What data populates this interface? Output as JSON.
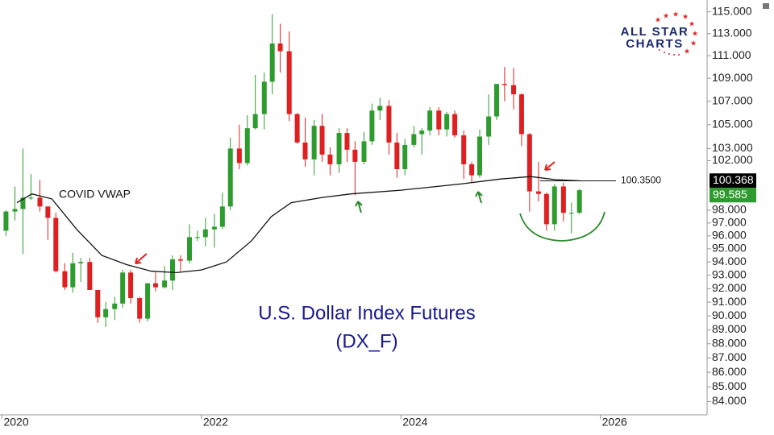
{
  "chart_data": {
    "type": "candlestick",
    "log_scale": true,
    "up_color": "#2e9b2e",
    "down_color": "#e02020",
    "x": [
      2020.04,
      2020.13,
      2020.21,
      2020.29,
      2020.38,
      2020.46,
      2020.54,
      2020.63,
      2020.71,
      2020.79,
      2020.88,
      2020.96,
      2021.04,
      2021.13,
      2021.21,
      2021.29,
      2021.38,
      2021.46,
      2021.54,
      2021.63,
      2021.71,
      2021.79,
      2021.88,
      2021.96,
      2022.04,
      2022.13,
      2022.21,
      2022.29,
      2022.38,
      2022.46,
      2022.54,
      2022.63,
      2022.71,
      2022.79,
      2022.88,
      2022.96,
      2023.04,
      2023.13,
      2023.21,
      2023.29,
      2023.38,
      2023.46,
      2023.54,
      2023.63,
      2023.71,
      2023.79,
      2023.88,
      2023.96,
      2024.04,
      2024.13,
      2024.21,
      2024.29,
      2024.38,
      2024.46,
      2024.54,
      2024.63,
      2024.71,
      2024.79,
      2024.88,
      2024.96,
      2025.04,
      2025.13,
      2025.21,
      2025.29,
      2025.38,
      2025.46,
      2025.54,
      2025.63,
      2025.71,
      2025.79
    ],
    "open": [
      96.4,
      97.9,
      98.1,
      99.0,
      99.0,
      98.3,
      97.4,
      93.3,
      92.1,
      93.9,
      94.0,
      91.9,
      89.9,
      90.5,
      90.9,
      93.2,
      91.3,
      89.8,
      92.4,
      92.1,
      92.6,
      94.2,
      94.1,
      95.9,
      95.9,
      96.5,
      96.7,
      98.3,
      103.0,
      101.8,
      104.7,
      105.9,
      108.7,
      112.1,
      111.4,
      105.9,
      103.5,
      102.1,
      104.9,
      102.5,
      101.7,
      104.3,
      102.9,
      101.9,
      103.6,
      106.2,
      106.6,
      103.5,
      101.3,
      103.3,
      104.2,
      104.5,
      106.2,
      104.6,
      105.9,
      104.1,
      101.7,
      100.8,
      104.0,
      105.7,
      108.5,
      108.4,
      107.6,
      104.2,
      99.5,
      99.3,
      96.9,
      99.9,
      97.8,
      97.8
    ],
    "high": [
      98.0,
      99.9,
      103.0,
      100.9,
      100.4,
      98.3,
      97.8,
      93.9,
      94.7,
      94.3,
      94.3,
      91.9,
      91.0,
      91.4,
      93.4,
      93.4,
      91.4,
      92.4,
      93.2,
      93.7,
      94.5,
      94.5,
      96.9,
      96.4,
      97.4,
      97.7,
      99.4,
      103.9,
      105.0,
      105.8,
      109.3,
      109.5,
      114.8,
      113.9,
      113.2,
      106.0,
      105.6,
      105.4,
      105.9,
      103.1,
      104.7,
      104.7,
      103.6,
      104.4,
      106.8,
      107.3,
      107.1,
      104.3,
      103.8,
      104.9,
      104.7,
      106.5,
      106.5,
      106.1,
      106.2,
      104.5,
      101.9,
      104.6,
      107.6,
      108.5,
      110.0,
      109.9,
      107.7,
      104.3,
      101.9,
      99.4,
      100.1,
      100.2,
      98.6,
      99.7
    ],
    "low": [
      96.0,
      97.2,
      94.6,
      98.8,
      97.9,
      95.7,
      93.2,
      91.9,
      91.7,
      92.5,
      91.9,
      89.5,
      89.2,
      89.7,
      90.6,
      90.9,
      89.5,
      89.6,
      91.8,
      92.0,
      91.9,
      93.3,
      93.9,
      95.6,
      95.2,
      95.1,
      96.5,
      98.0,
      101.3,
      101.6,
      104.6,
      104.6,
      107.6,
      109.5,
      105.3,
      103.4,
      101.5,
      100.8,
      101.9,
      100.8,
      101.0,
      101.9,
      99.2,
      101.7,
      103.3,
      105.4,
      102.5,
      100.6,
      100.8,
      103.1,
      102.5,
      104.1,
      104.1,
      104.0,
      103.9,
      100.5,
      100.2,
      100.6,
      103.3,
      105.4,
      107.0,
      106.3,
      103.2,
      97.9,
      98.7,
      96.4,
      96.4,
      97.1,
      96.2,
      97.7
    ],
    "close": [
      97.9,
      98.1,
      99.0,
      99.0,
      98.3,
      97.4,
      93.3,
      92.1,
      93.9,
      94.0,
      91.9,
      89.9,
      90.5,
      90.9,
      93.2,
      91.3,
      89.8,
      92.4,
      92.1,
      92.6,
      94.2,
      94.1,
      95.9,
      95.9,
      96.5,
      96.7,
      98.3,
      103.0,
      101.8,
      104.7,
      105.9,
      108.7,
      112.1,
      111.4,
      105.9,
      103.5,
      102.1,
      104.9,
      102.5,
      101.7,
      104.3,
      102.9,
      101.9,
      103.6,
      106.2,
      106.6,
      103.5,
      101.3,
      103.3,
      104.2,
      104.5,
      106.2,
      104.6,
      105.9,
      104.1,
      101.7,
      100.8,
      104.0,
      105.7,
      108.5,
      108.4,
      107.6,
      104.2,
      99.5,
      99.3,
      96.9,
      99.9,
      97.8,
      97.8,
      99.6
    ],
    "lines": [
      {
        "name": "COVID VWAP",
        "color": "#111111",
        "x": [
          2020.15,
          2020.3,
          2020.5,
          2020.75,
          2021.0,
          2021.25,
          2021.5,
          2021.75,
          2022.0,
          2022.25,
          2022.5,
          2022.7,
          2022.9,
          2023.2,
          2023.5,
          2024.0,
          2024.6,
          2025.0,
          2025.3,
          2025.55,
          2025.8
        ],
        "values": [
          98.6,
          99.3,
          98.9,
          96.5,
          94.5,
          93.8,
          93.3,
          93.2,
          93.4,
          94.0,
          95.6,
          97.5,
          98.6,
          99.0,
          99.3,
          99.6,
          100.1,
          100.5,
          100.7,
          100.45,
          100.35
        ]
      }
    ],
    "hline": {
      "value": 100.35,
      "label": "100.3500"
    },
    "price_tags": [
      {
        "value": 100.368,
        "color": "#000000"
      },
      {
        "value": 99.585,
        "color": "#2e9b2e"
      }
    ],
    "title": "U.S. Dollar Index Futures",
    "subtitle": "(DX_F)",
    "logo": [
      "ALL STAR",
      "CHARTS"
    ],
    "xlim": [
      2019.98,
      2027.07
    ],
    "xticks": [
      2020,
      2022,
      2024,
      2026
    ],
    "ylim": [
      83.1,
      116.1
    ],
    "yticks": [
      {
        "value": 84,
        "label": "84.000"
      },
      {
        "value": 85,
        "label": "85.000"
      },
      {
        "value": 86,
        "label": "86.000"
      },
      {
        "value": 87,
        "label": "87.000"
      },
      {
        "value": 88,
        "label": "88.000"
      },
      {
        "value": 89,
        "label": "89.000"
      },
      {
        "value": 90,
        "label": "90.000"
      },
      {
        "value": 91,
        "label": "91.000"
      },
      {
        "value": 92,
        "label": "92.000"
      },
      {
        "value": 93,
        "label": "93.000"
      },
      {
        "value": 94,
        "label": "94.000"
      },
      {
        "value": 95,
        "label": "95.000"
      },
      {
        "value": 96,
        "label": "96.000"
      },
      {
        "value": 97,
        "label": "97.000"
      },
      {
        "value": 98,
        "label": "98.000"
      },
      {
        "value": 102,
        "label": "102.000"
      },
      {
        "value": 103,
        "label": "103.000"
      },
      {
        "value": 105,
        "label": "105.000"
      },
      {
        "value": 107,
        "label": "107.000"
      },
      {
        "value": 109,
        "label": "109.000"
      },
      {
        "value": 111,
        "label": "111.000"
      },
      {
        "value": 113,
        "label": "113.000"
      },
      {
        "value": 115,
        "label": "115.000"
      }
    ]
  }
}
